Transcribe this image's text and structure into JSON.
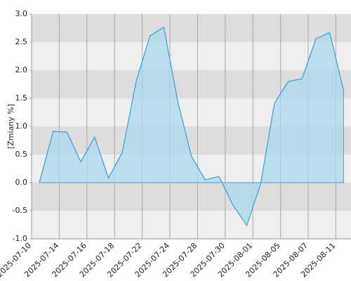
{
  "chart_data": {
    "type": "area",
    "y_label": "[Zmiany %]",
    "categories": [
      "2025-07-10",
      null,
      "2025-07-14",
      null,
      "2025-07-16",
      null,
      "2025-07-18",
      null,
      "2025-07-22",
      null,
      "2025-07-24",
      null,
      "2025-07-28",
      null,
      "2025-07-30",
      null,
      "2025-08-01",
      null,
      "2025-08-05",
      null,
      "2025-08-07",
      null,
      "2025-08-11"
    ],
    "values": [
      0.0,
      0.91,
      0.9,
      0.37,
      0.81,
      0.08,
      0.54,
      1.8,
      2.61,
      2.77,
      1.46,
      0.47,
      0.05,
      0.11,
      -0.4,
      -0.76,
      -0.03,
      1.41,
      1.8,
      1.85,
      2.56,
      2.67,
      1.64
    ],
    "color": "#4a9fe0",
    "fill_color": "#a8d8ea",
    "ylim": [
      -1.0,
      3.0
    ],
    "yticks": [
      {
        "value": -1,
        "label": "-1.0"
      },
      -0.5,
      {
        "value": 0,
        "label": "0.0"
      },
      0.5,
      {
        "value": 1,
        "label": "1.0"
      },
      1.5,
      {
        "value": 2,
        "label": "2.0"
      },
      2.5,
      {
        "value": 3,
        "label": "3.0"
      }
    ],
    "grid": true
  }
}
